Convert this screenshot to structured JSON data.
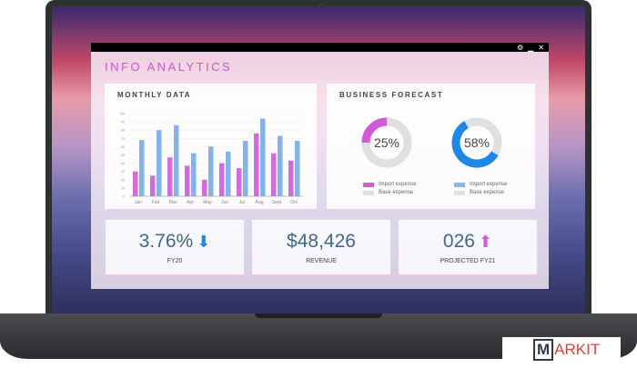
{
  "window": {
    "title": "INFO ANALYTICS",
    "controls": [
      "gear",
      "minimize",
      "close"
    ]
  },
  "monthly": {
    "title": "MONTHLY DATA"
  },
  "forecast": {
    "title": "BUSINESS FORECAST",
    "donuts": [
      {
        "value": "25%",
        "percent": 25,
        "color": "#d25ad8",
        "legend": [
          "Import expense",
          "Base expense"
        ],
        "legend_colors": [
          "#d25ad8",
          "#e0e0e0"
        ]
      },
      {
        "value": "58%",
        "percent": 58,
        "color": "#1e88e5",
        "legend": [
          "Import expense",
          "Base expense"
        ],
        "legend_colors": [
          "#8fb7e6",
          "#e0e0e0"
        ]
      }
    ]
  },
  "kpis": [
    {
      "value": "3.76%",
      "label": "FY20",
      "icon": "arrow-down",
      "color": "#1e88e5"
    },
    {
      "value": "$48,426",
      "label": "REVENUE"
    },
    {
      "value": "026",
      "label": "PROJECTED FY21",
      "icon": "arrow-up",
      "color": "#d25ad8"
    }
  ],
  "logo": {
    "text": "MARKIT"
  },
  "chart_data": {
    "type": "bar",
    "categories": [
      "Jan",
      "Feb",
      "Mar",
      "Apr",
      "May",
      "Jun",
      "Jul",
      "Aug",
      "Sept",
      "Oct"
    ],
    "yticks": [
      "0",
      "10",
      "20",
      "30",
      "40",
      "50",
      "60",
      "70",
      "80",
      "90",
      "100"
    ],
    "ylim": [
      0,
      100
    ],
    "grid": true,
    "series": [
      {
        "color": "#d36bdc",
        "values": [
          30,
          25,
          47,
          37,
          20,
          40,
          34,
          76,
          52,
          43
        ]
      },
      {
        "color": "#82b4e8",
        "values": [
          68,
          80,
          86,
          52,
          60,
          54,
          67,
          94,
          73,
          67
        ]
      }
    ]
  }
}
